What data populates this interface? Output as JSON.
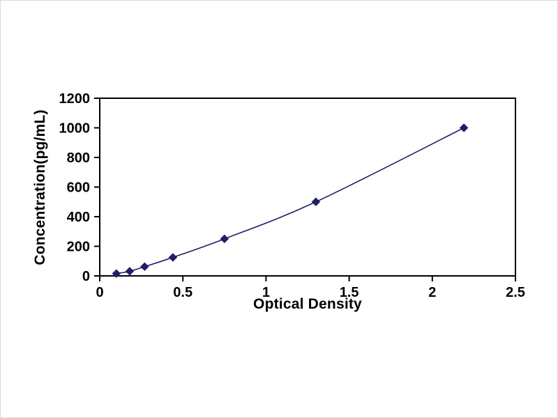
{
  "chart_data": {
    "type": "line",
    "title": "",
    "xlabel": "Optical Density",
    "ylabel": "Concentration(pg/mL)",
    "x": [
      0.1,
      0.18,
      0.27,
      0.44,
      0.75,
      1.3,
      2.19
    ],
    "y": [
      15.6,
      31.3,
      62.5,
      125,
      250,
      500,
      1000
    ],
    "xlim": [
      0,
      2.5
    ],
    "ylim": [
      0,
      1200
    ],
    "xticks": [
      0,
      0.5,
      1,
      1.5,
      2,
      2.5
    ],
    "xtick_labels": [
      "0",
      "0.5",
      "1",
      "1.5",
      "2",
      "2.5"
    ],
    "yticks": [
      0,
      200,
      400,
      600,
      800,
      1000,
      1200
    ],
    "ytick_labels": [
      "0",
      "200",
      "400",
      "600",
      "800",
      "1000",
      "1200"
    ],
    "grid": false,
    "legend": "none",
    "marker": "diamond",
    "line_color": "#1F1F66",
    "marker_color": "#1F1F66",
    "axis_color": "#000000",
    "background": "#FFFFFF"
  }
}
